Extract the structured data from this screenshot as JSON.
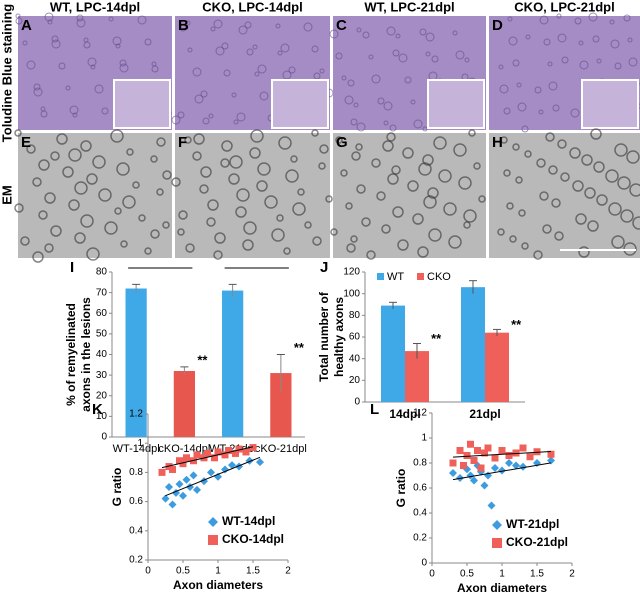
{
  "panels": [
    {
      "letter": "A",
      "title": "WT, LPC-14dpl"
    },
    {
      "letter": "B",
      "title": "CKO, LPC-14dpl"
    },
    {
      "letter": "C",
      "title": "WT, LPC-21dpl"
    },
    {
      "letter": "D",
      "title": "CKO, LPC-21dpl"
    },
    {
      "letter": "E"
    },
    {
      "letter": "F"
    },
    {
      "letter": "G"
    },
    {
      "letter": "H"
    }
  ],
  "row_labels": [
    "Toludine Blue staining",
    "EM"
  ],
  "chart_data": [
    {
      "type": "bar",
      "label": "I",
      "ylabel": [
        "% of remyelinated",
        "axons in the lesions"
      ],
      "categories": [
        "WT-14dpl",
        "cKO-14dpl",
        "WT-21dpl",
        "cKO-21dpl"
      ],
      "values": [
        72,
        32,
        71,
        31
      ],
      "errors": [
        2,
        2,
        3,
        9
      ],
      "colors": [
        "#3fa9e8",
        "#e8574e",
        "#3fa9e8",
        "#e8574e"
      ],
      "ylim": [
        0,
        80
      ],
      "yticks": [
        0,
        10,
        20,
        30,
        40,
        50,
        60,
        70,
        80
      ],
      "annotations": [
        {
          "x": "cKO-14dpl",
          "text": "**"
        },
        {
          "x": "cKO-21dpl",
          "text": "**"
        }
      ]
    },
    {
      "type": "grouped_bar",
      "label": "J",
      "ylabel": [
        "Total number of",
        "healthy axons"
      ],
      "categories": [
        "14dpl",
        "21dpl"
      ],
      "series": [
        {
          "name": "WT",
          "color": "#3fa9e8",
          "values": [
            89,
            106
          ],
          "errors": [
            3,
            6
          ]
        },
        {
          "name": "CKO",
          "color": "#f0605a",
          "values": [
            47,
            64
          ],
          "errors": [
            7,
            3
          ]
        }
      ],
      "ylim": [
        0,
        120
      ],
      "yticks": [
        0,
        20,
        40,
        60,
        80,
        100,
        120
      ],
      "annotations": [
        {
          "x": "14dpl",
          "text": "**"
        },
        {
          "x": "21dpl",
          "text": "**"
        }
      ]
    },
    {
      "type": "scatter",
      "label": "K",
      "xlabel": "Axon diameters",
      "ylabel": "G ratio",
      "xlim": [
        0,
        2
      ],
      "xticks": [
        0,
        0.5,
        1,
        1.5,
        2
      ],
      "ylim": [
        0.2,
        1.2
      ],
      "yticks": [
        0.2,
        0.4,
        0.6,
        0.8,
        1,
        1.2
      ],
      "trendline": true,
      "series": [
        {
          "name": "WT-14dpl",
          "color": "#3d9be0",
          "marker": "diamond",
          "x": [
            0.25,
            0.3,
            0.35,
            0.4,
            0.45,
            0.5,
            0.55,
            0.6,
            0.65,
            0.7,
            0.8,
            0.9,
            1.0,
            1.1,
            1.2,
            1.3,
            1.45,
            1.6
          ],
          "values": [
            0.62,
            0.7,
            0.58,
            0.66,
            0.72,
            0.64,
            0.75,
            0.7,
            0.78,
            0.68,
            0.74,
            0.8,
            0.77,
            0.82,
            0.85,
            0.84,
            0.88,
            0.87
          ]
        },
        {
          "name": "CKO-14dpl",
          "color": "#f0605a",
          "marker": "square",
          "x": [
            0.2,
            0.3,
            0.35,
            0.45,
            0.5,
            0.55,
            0.65,
            0.7,
            0.8,
            0.85,
            0.95,
            1.0,
            1.1,
            1.15,
            1.25,
            1.3,
            1.4,
            1.5
          ],
          "values": [
            0.8,
            0.84,
            0.82,
            0.88,
            0.86,
            0.9,
            0.88,
            0.92,
            0.9,
            0.93,
            0.9,
            0.94,
            0.92,
            0.95,
            0.93,
            0.96,
            0.94,
            0.97
          ]
        }
      ]
    },
    {
      "type": "scatter",
      "label": "L",
      "xlabel": "Axon diameters",
      "ylabel": "G ratio",
      "xlim": [
        0,
        2
      ],
      "xticks": [
        0,
        0.5,
        1,
        1.5,
        2
      ],
      "ylim": [
        0,
        1.2
      ],
      "yticks": [
        0,
        0.2,
        0.4,
        0.6,
        0.8,
        1,
        1.2
      ],
      "trendline": true,
      "series": [
        {
          "name": "WT-21dpl",
          "color": "#3d9be0",
          "marker": "diamond",
          "x": [
            0.3,
            0.4,
            0.5,
            0.55,
            0.6,
            0.65,
            0.7,
            0.75,
            0.8,
            0.85,
            0.9,
            1.0,
            1.1,
            1.2,
            1.3,
            1.5,
            1.7
          ],
          "values": [
            0.72,
            0.68,
            0.75,
            0.7,
            0.66,
            0.78,
            0.73,
            0.62,
            0.7,
            0.46,
            0.76,
            0.74,
            0.8,
            0.78,
            0.77,
            0.8,
            0.82
          ]
        },
        {
          "name": "CKO-21dpl",
          "color": "#f0605a",
          "marker": "square",
          "x": [
            0.3,
            0.4,
            0.45,
            0.5,
            0.55,
            0.6,
            0.65,
            0.7,
            0.75,
            0.8,
            0.9,
            1.0,
            1.1,
            1.2,
            1.3,
            1.4,
            1.5,
            1.7
          ],
          "values": [
            0.8,
            0.9,
            0.78,
            0.86,
            0.95,
            0.82,
            0.9,
            0.76,
            0.88,
            0.92,
            0.84,
            0.9,
            0.86,
            0.88,
            0.92,
            0.85,
            0.89,
            0.87
          ]
        }
      ]
    }
  ]
}
